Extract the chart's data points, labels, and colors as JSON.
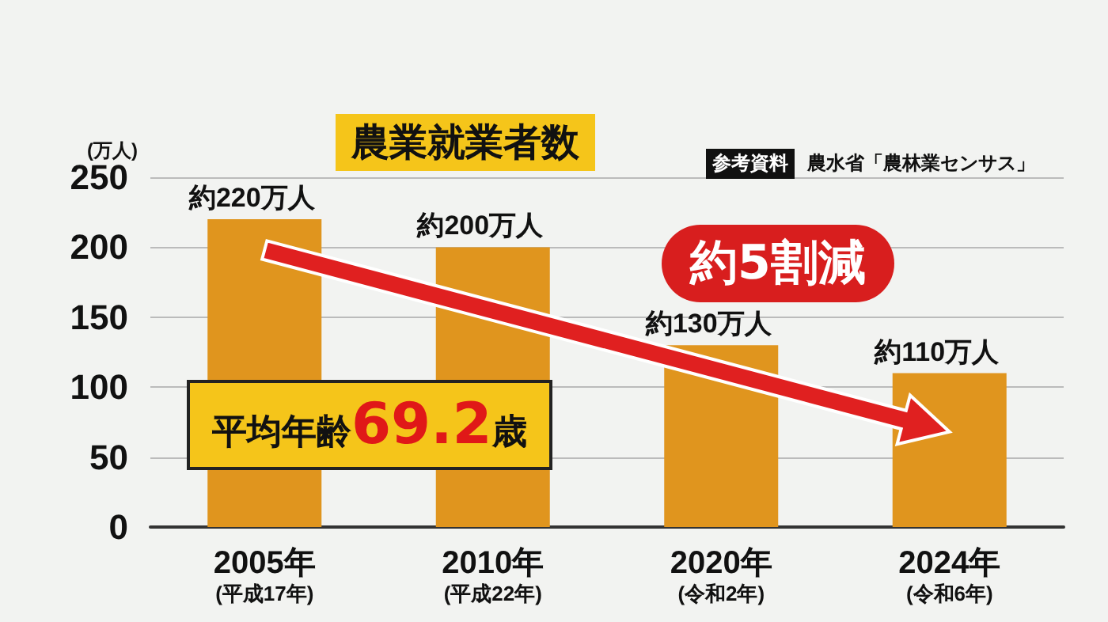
{
  "chart_data": {
    "type": "bar",
    "title": "農業就業者数",
    "ylabel": "(万人)",
    "categories": [
      "2005年\n(平成17年)",
      "2010年\n(平成22年)",
      "2020年\n(令和2年)",
      "2024年\n(令和6年)"
    ],
    "values": [
      220,
      200,
      130,
      110
    ],
    "color": "#e0951e",
    "value_labels": [
      "約220万人",
      "約200万人",
      "約130万人",
      "約110万人"
    ],
    "ylim": [
      0,
      250
    ],
    "yticks": [
      0,
      50,
      100,
      150,
      200,
      250
    ],
    "grid": "y",
    "annotations": [
      "参考資料",
      "農水省「農林業センサス」",
      "約5割減",
      "平均年齢69.2歳"
    ]
  }
}
